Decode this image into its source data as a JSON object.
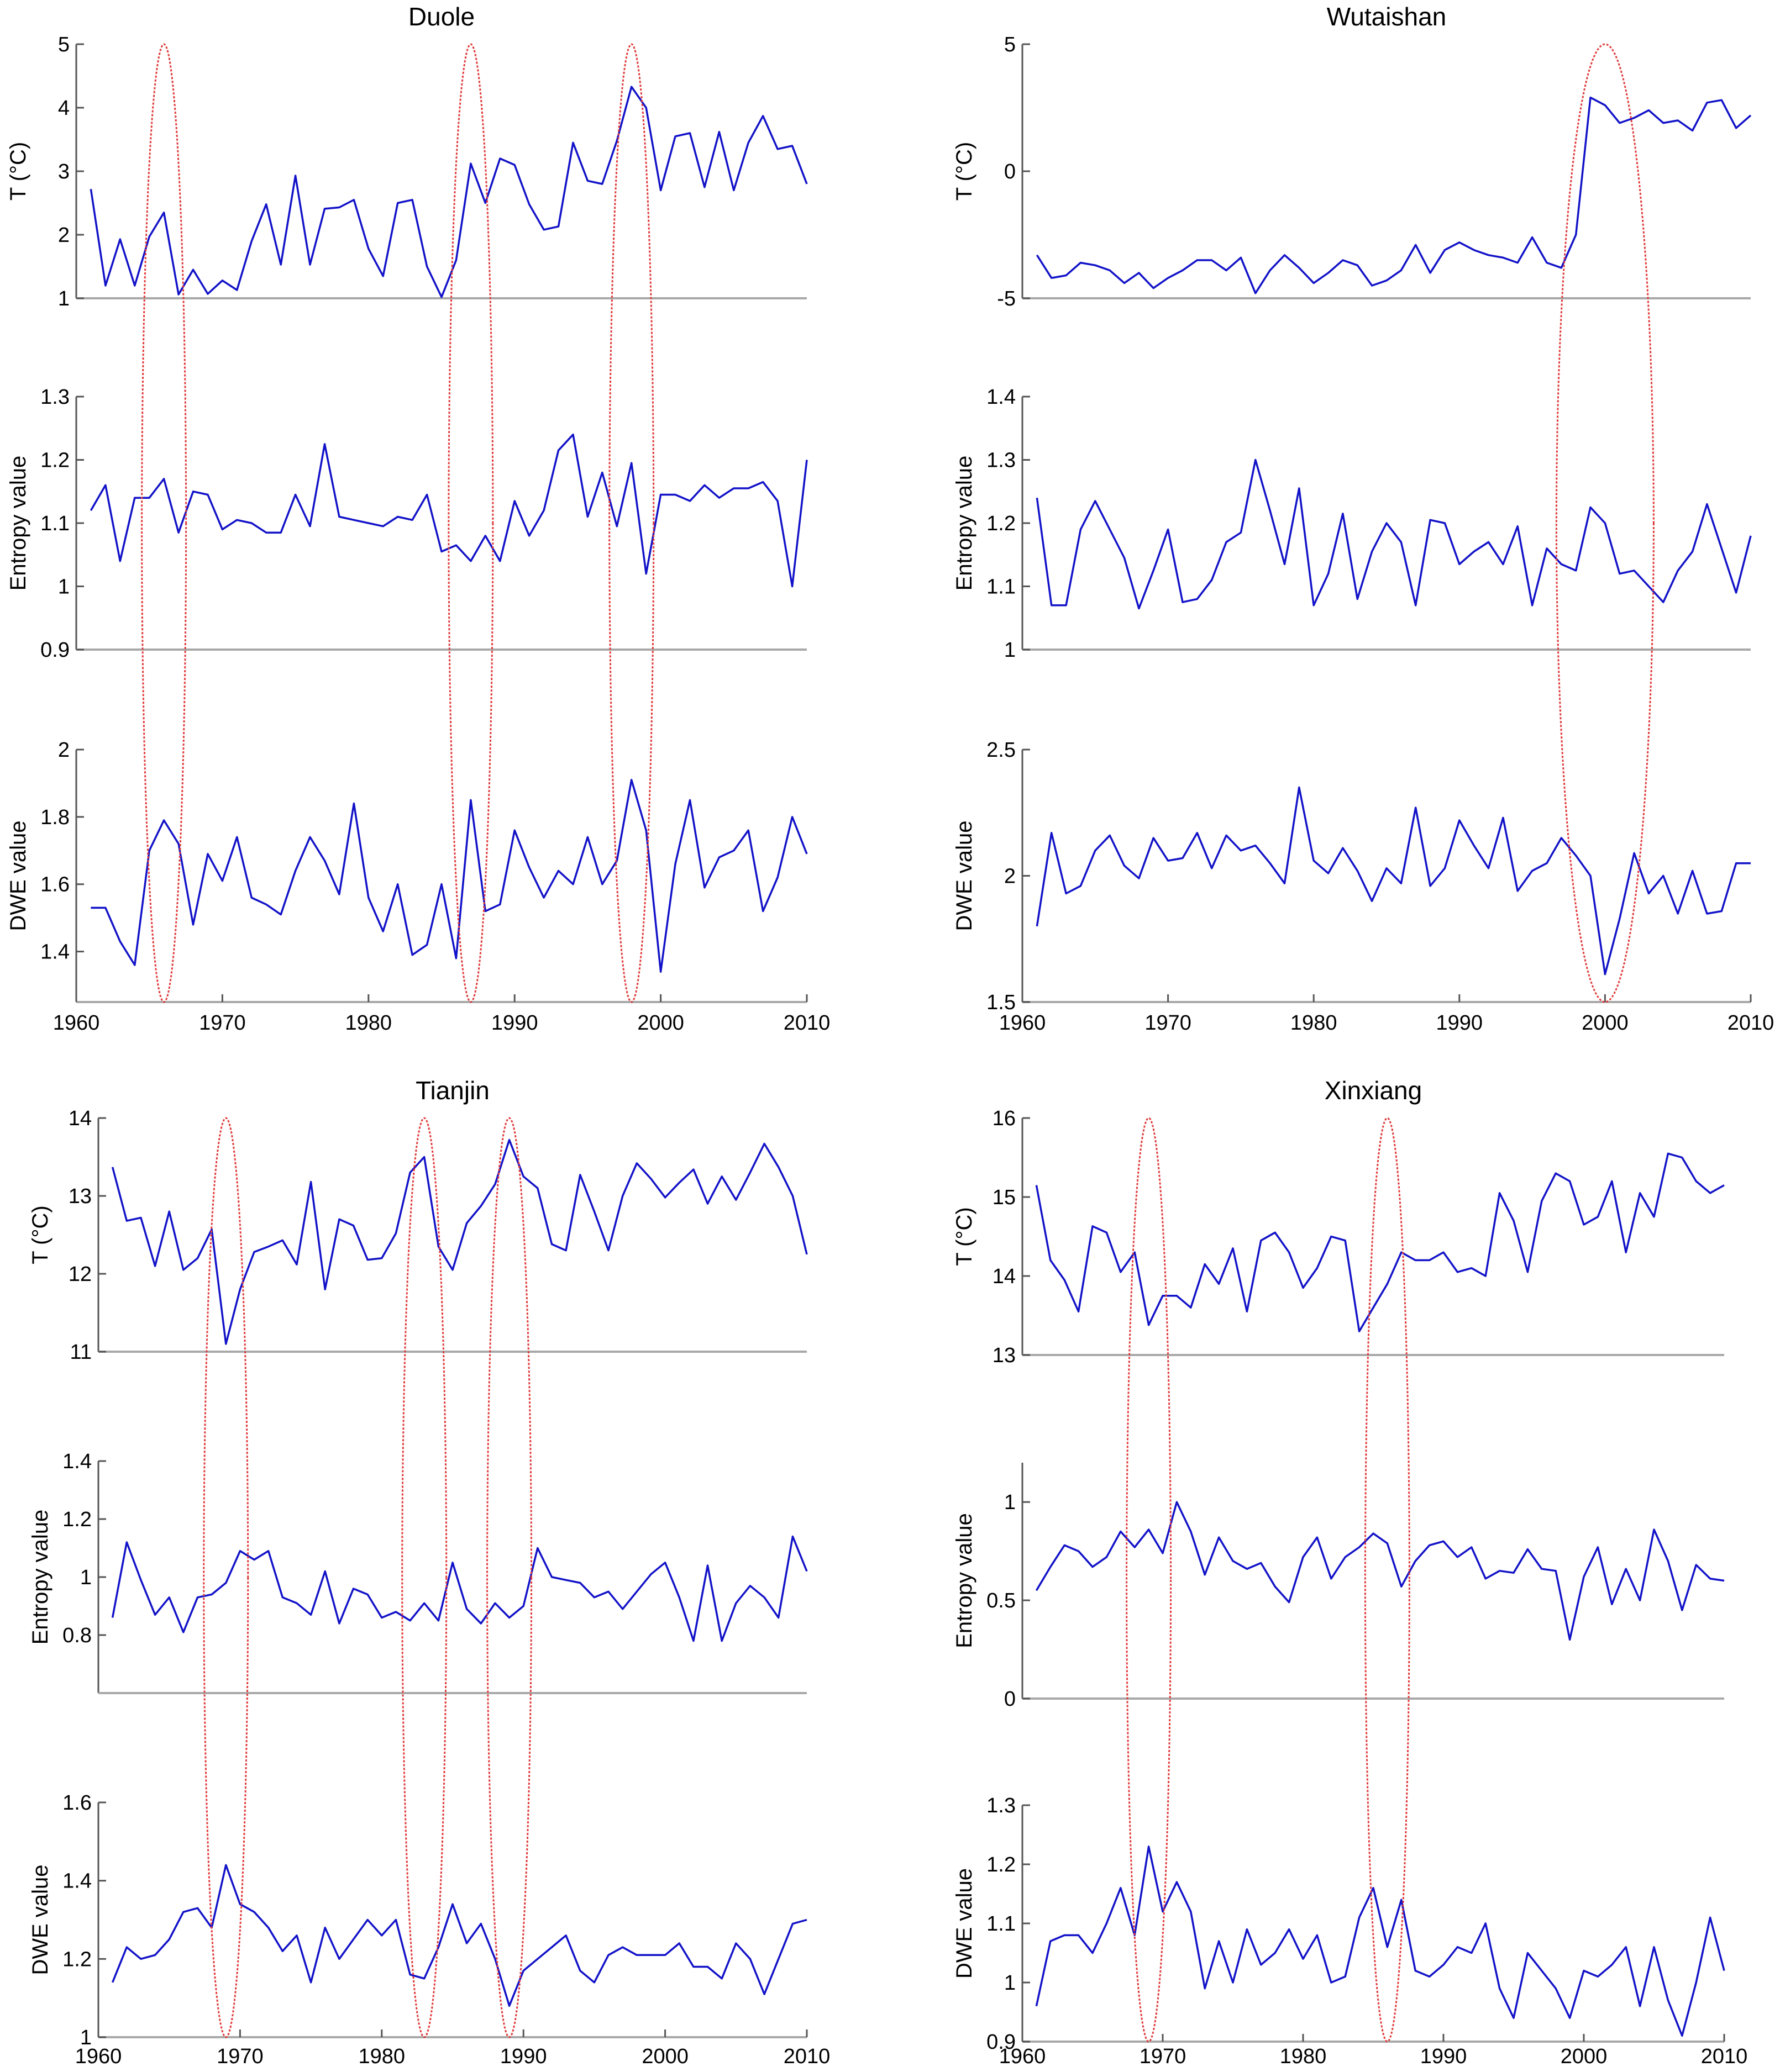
{
  "chart_data": [
    {
      "type": "line",
      "title": "Duole",
      "x_start": 1961,
      "x_end": 2010,
      "xlim": [
        1960,
        2010
      ],
      "xticks": [
        "1960",
        "1970",
        "1980",
        "1990",
        "2000",
        "2010"
      ],
      "highlight_years": [
        1966,
        1987,
        1998
      ],
      "panels": [
        {
          "ylabel": "T (°C)",
          "ylim": [
            1,
            5
          ],
          "yticks": [
            "1",
            "2",
            "3",
            "4",
            "5"
          ],
          "values": [
            2.72,
            1.2,
            1.93,
            1.2,
            1.97,
            2.35,
            1.06,
            1.45,
            1.07,
            1.28,
            1.13,
            1.9,
            2.48,
            1.53,
            2.93,
            1.53,
            2.41,
            2.43,
            2.55,
            1.78,
            1.35,
            2.5,
            2.55,
            1.5,
            1.02,
            1.6,
            3.12,
            2.5,
            3.2,
            3.1,
            2.48,
            2.08,
            2.13,
            3.45,
            2.85,
            2.8,
            3.48,
            4.33,
            4.0,
            2.7,
            3.55,
            3.6,
            2.75,
            3.62,
            2.7,
            3.45,
            3.87,
            3.35,
            3.4,
            2.8
          ]
        },
        {
          "ylabel": "Entropy value",
          "ylim": [
            0.9,
            1.3
          ],
          "yticks": [
            "0.9",
            "1",
            "1.1",
            "1.2",
            "1.3"
          ],
          "values": [
            1.12,
            1.16,
            1.04,
            1.14,
            1.14,
            1.17,
            1.085,
            1.15,
            1.145,
            1.09,
            1.105,
            1.1,
            1.085,
            1.085,
            1.145,
            1.095,
            1.225,
            1.11,
            1.105,
            1.1,
            1.095,
            1.11,
            1.105,
            1.145,
            1.055,
            1.065,
            1.04,
            1.08,
            1.04,
            1.135,
            1.08,
            1.12,
            1.215,
            1.24,
            1.11,
            1.18,
            1.095,
            1.195,
            1.02,
            1.145,
            1.145,
            1.135,
            1.16,
            1.14,
            1.155,
            1.155,
            1.165,
            1.135,
            1.0,
            1.2
          ]
        },
        {
          "ylabel": "DWE value",
          "ylim": [
            1.25,
            2
          ],
          "yticks": [
            "1.4",
            "1.6",
            "1.8",
            "2"
          ],
          "values": [
            1.53,
            1.53,
            1.43,
            1.36,
            1.7,
            1.79,
            1.72,
            1.48,
            1.69,
            1.61,
            1.74,
            1.56,
            1.54,
            1.51,
            1.64,
            1.74,
            1.67,
            1.57,
            1.84,
            1.56,
            1.46,
            1.6,
            1.39,
            1.42,
            1.6,
            1.38,
            1.85,
            1.52,
            1.54,
            1.76,
            1.65,
            1.56,
            1.64,
            1.6,
            1.74,
            1.6,
            1.67,
            1.91,
            1.76,
            1.34,
            1.66,
            1.85,
            1.59,
            1.68,
            1.7,
            1.76,
            1.52,
            1.62,
            1.8,
            1.69
          ]
        }
      ]
    },
    {
      "type": "line",
      "title": "Wutaishan",
      "x_start": 1961,
      "x_end": 2010,
      "xlim": [
        1960,
        2010
      ],
      "xticks": [
        "1960",
        "1970",
        "1980",
        "1990",
        "2000",
        "2010"
      ],
      "highlight_years": [
        2000
      ],
      "panels": [
        {
          "ylabel": "T (°C)",
          "ylim": [
            -5,
            5
          ],
          "yticks": [
            "-5",
            "0",
            "5"
          ],
          "values": [
            -3.3,
            -4.2,
            -4.1,
            -3.6,
            -3.7,
            -3.9,
            -4.4,
            -4.0,
            -4.6,
            -4.2,
            -3.9,
            -3.5,
            -3.5,
            -3.9,
            -3.4,
            -4.8,
            -3.9,
            -3.3,
            -3.8,
            -4.4,
            -4.0,
            -3.5,
            -3.7,
            -4.5,
            -4.3,
            -3.9,
            -2.9,
            -4.0,
            -3.1,
            -2.8,
            -3.1,
            -3.3,
            -3.4,
            -3.6,
            -2.6,
            -3.6,
            -3.8,
            -2.5,
            2.9,
            2.6,
            1.9,
            2.1,
            2.4,
            1.9,
            2.0,
            1.6,
            2.7,
            2.8,
            1.7,
            2.2
          ]
        },
        {
          "ylabel": "Entropy value",
          "ylim": [
            1,
            1.4
          ],
          "yticks": [
            "1",
            "1.1",
            "1.2",
            "1.3",
            "1.4"
          ],
          "values": [
            1.24,
            1.07,
            1.07,
            1.19,
            1.235,
            1.19,
            1.145,
            1.065,
            1.125,
            1.19,
            1.075,
            1.08,
            1.11,
            1.17,
            1.185,
            1.3,
            1.22,
            1.135,
            1.255,
            1.07,
            1.12,
            1.215,
            1.08,
            1.155,
            1.2,
            1.17,
            1.07,
            1.205,
            1.2,
            1.135,
            1.155,
            1.17,
            1.135,
            1.195,
            1.07,
            1.16,
            1.135,
            1.125,
            1.225,
            1.2,
            1.12,
            1.125,
            1.1,
            1.075,
            1.125,
            1.155,
            1.23,
            1.16,
            1.09,
            1.18
          ]
        },
        {
          "ylabel": "DWE value",
          "ylim": [
            1.5,
            2.5
          ],
          "yticks": [
            "1.5",
            "2",
            "2.5"
          ],
          "values": [
            1.8,
            2.17,
            1.93,
            1.96,
            2.1,
            2.16,
            2.04,
            1.99,
            2.15,
            2.06,
            2.07,
            2.17,
            2.03,
            2.16,
            2.1,
            2.12,
            2.05,
            1.97,
            2.35,
            2.06,
            2.01,
            2.11,
            2.02,
            1.9,
            2.03,
            1.97,
            2.27,
            1.96,
            2.03,
            2.22,
            2.12,
            2.03,
            2.23,
            1.94,
            2.02,
            2.05,
            2.15,
            2.08,
            2.0,
            1.61,
            1.83,
            2.09,
            1.93,
            2.0,
            1.85,
            2.02,
            1.85,
            1.86,
            2.05,
            2.05
          ]
        }
      ]
    },
    {
      "type": "line",
      "title": "Tianjin",
      "x_start": 1961,
      "x_end": 2010,
      "xlim": [
        1960,
        2010
      ],
      "xticks": [
        "1960",
        "1970",
        "1980",
        "1990",
        "2000",
        "2010"
      ],
      "highlight_years": [
        1969,
        1983,
        1989
      ],
      "panels": [
        {
          "ylabel": "T (°C)",
          "ylim": [
            11,
            14
          ],
          "yticks": [
            "11",
            "12",
            "13",
            "14"
          ],
          "values": [
            13.37,
            12.68,
            12.72,
            12.1,
            12.8,
            12.05,
            12.2,
            12.57,
            11.1,
            11.8,
            12.28,
            12.35,
            12.43,
            12.12,
            13.18,
            11.8,
            12.7,
            12.62,
            12.18,
            12.2,
            12.52,
            13.3,
            13.5,
            12.35,
            12.05,
            12.65,
            12.87,
            13.15,
            13.72,
            13.25,
            13.1,
            12.38,
            12.3,
            13.27,
            12.8,
            12.3,
            13.0,
            13.42,
            13.22,
            12.98,
            13.17,
            13.34,
            12.9,
            13.25,
            12.95,
            13.3,
            13.67,
            13.37,
            13.0,
            12.25
          ]
        },
        {
          "ylabel": "Entropy value",
          "ylim": [
            0.6,
            1.4
          ],
          "yticks": [
            "0.8",
            "1",
            "1.2",
            "1.4"
          ],
          "values": [
            0.86,
            1.12,
            0.99,
            0.87,
            0.93,
            0.81,
            0.93,
            0.94,
            0.98,
            1.09,
            1.06,
            1.09,
            0.93,
            0.91,
            0.87,
            1.02,
            0.84,
            0.96,
            0.94,
            0.86,
            0.88,
            0.85,
            0.91,
            0.85,
            1.05,
            0.89,
            0.84,
            0.91,
            0.86,
            0.9,
            1.1,
            1.0,
            0.99,
            0.98,
            0.93,
            0.95,
            0.89,
            0.95,
            1.01,
            1.05,
            0.93,
            0.78,
            1.04,
            0.78,
            0.91,
            0.97,
            0.93,
            0.86,
            1.14,
            1.02
          ]
        },
        {
          "ylabel": "DWE value",
          "ylim": [
            1,
            1.6
          ],
          "yticks": [
            "1",
            "1.2",
            "1.4",
            "1.6"
          ],
          "values": [
            1.14,
            1.23,
            1.2,
            1.21,
            1.25,
            1.32,
            1.33,
            1.28,
            1.44,
            1.34,
            1.32,
            1.28,
            1.22,
            1.26,
            1.14,
            1.28,
            1.2,
            1.25,
            1.3,
            1.26,
            1.3,
            1.16,
            1.15,
            1.23,
            1.34,
            1.24,
            1.29,
            1.2,
            1.08,
            1.17,
            1.2,
            1.23,
            1.26,
            1.17,
            1.14,
            1.21,
            1.23,
            1.21,
            1.21,
            1.21,
            1.24,
            1.18,
            1.18,
            1.15,
            1.24,
            1.2,
            1.11,
            1.2,
            1.29,
            1.3
          ]
        }
      ]
    },
    {
      "type": "line",
      "title": "Xinxiang",
      "x_start": 1961,
      "x_end": 2010,
      "xlim": [
        1960,
        2010
      ],
      "xticks": [
        "1960",
        "1970",
        "1980",
        "1990",
        "2000",
        "2010"
      ],
      "highlight_years": [
        1969,
        1986
      ],
      "panels": [
        {
          "ylabel": "T (°C)",
          "ylim": [
            13,
            16
          ],
          "yticks": [
            "13",
            "14",
            "15",
            "16"
          ],
          "values": [
            15.15,
            14.2,
            13.95,
            13.55,
            14.63,
            14.55,
            14.05,
            14.3,
            13.38,
            13.75,
            13.75,
            13.6,
            14.15,
            13.9,
            14.35,
            13.55,
            14.45,
            14.55,
            14.3,
            13.85,
            14.1,
            14.5,
            14.45,
            13.3,
            13.6,
            13.9,
            14.3,
            14.2,
            14.2,
            14.3,
            14.05,
            14.1,
            14.0,
            15.05,
            14.7,
            14.05,
            14.95,
            15.3,
            15.2,
            14.65,
            14.75,
            15.2,
            14.3,
            15.05,
            14.75,
            15.55,
            15.5,
            15.2,
            15.05,
            15.15
          ]
        },
        {
          "ylabel": "Entropy value",
          "ylim": [
            0,
            1.2
          ],
          "yticks": [
            "0",
            "0.5",
            "1"
          ],
          "values": [
            0.55,
            0.67,
            0.78,
            0.75,
            0.67,
            0.72,
            0.85,
            0.77,
            0.86,
            0.74,
            1.0,
            0.85,
            0.63,
            0.82,
            0.7,
            0.66,
            0.69,
            0.57,
            0.49,
            0.72,
            0.82,
            0.61,
            0.72,
            0.77,
            0.84,
            0.79,
            0.57,
            0.7,
            0.78,
            0.8,
            0.72,
            0.77,
            0.61,
            0.65,
            0.64,
            0.76,
            0.66,
            0.65,
            0.3,
            0.62,
            0.77,
            0.48,
            0.66,
            0.5,
            0.86,
            0.7,
            0.45,
            0.68,
            0.61,
            0.6
          ]
        },
        {
          "ylabel": "DWE value",
          "ylim": [
            0.9,
            1.3
          ],
          "yticks": [
            "0.9",
            "1",
            "1.1",
            "1.2",
            "1.3"
          ],
          "values": [
            0.96,
            1.07,
            1.08,
            1.08,
            1.05,
            1.1,
            1.16,
            1.08,
            1.23,
            1.12,
            1.17,
            1.12,
            0.99,
            1.07,
            1.0,
            1.09,
            1.03,
            1.05,
            1.09,
            1.04,
            1.08,
            1.0,
            1.01,
            1.11,
            1.16,
            1.06,
            1.14,
            1.02,
            1.01,
            1.03,
            1.06,
            1.05,
            1.1,
            0.99,
            0.94,
            1.05,
            1.02,
            0.99,
            0.94,
            1.02,
            1.01,
            1.03,
            1.06,
            0.96,
            1.06,
            0.97,
            0.91,
            1.0,
            1.11,
            1.02
          ]
        }
      ]
    }
  ],
  "colors": {
    "series": "#1212c8",
    "highlight": "#e03c3c",
    "axis": "#555555"
  }
}
